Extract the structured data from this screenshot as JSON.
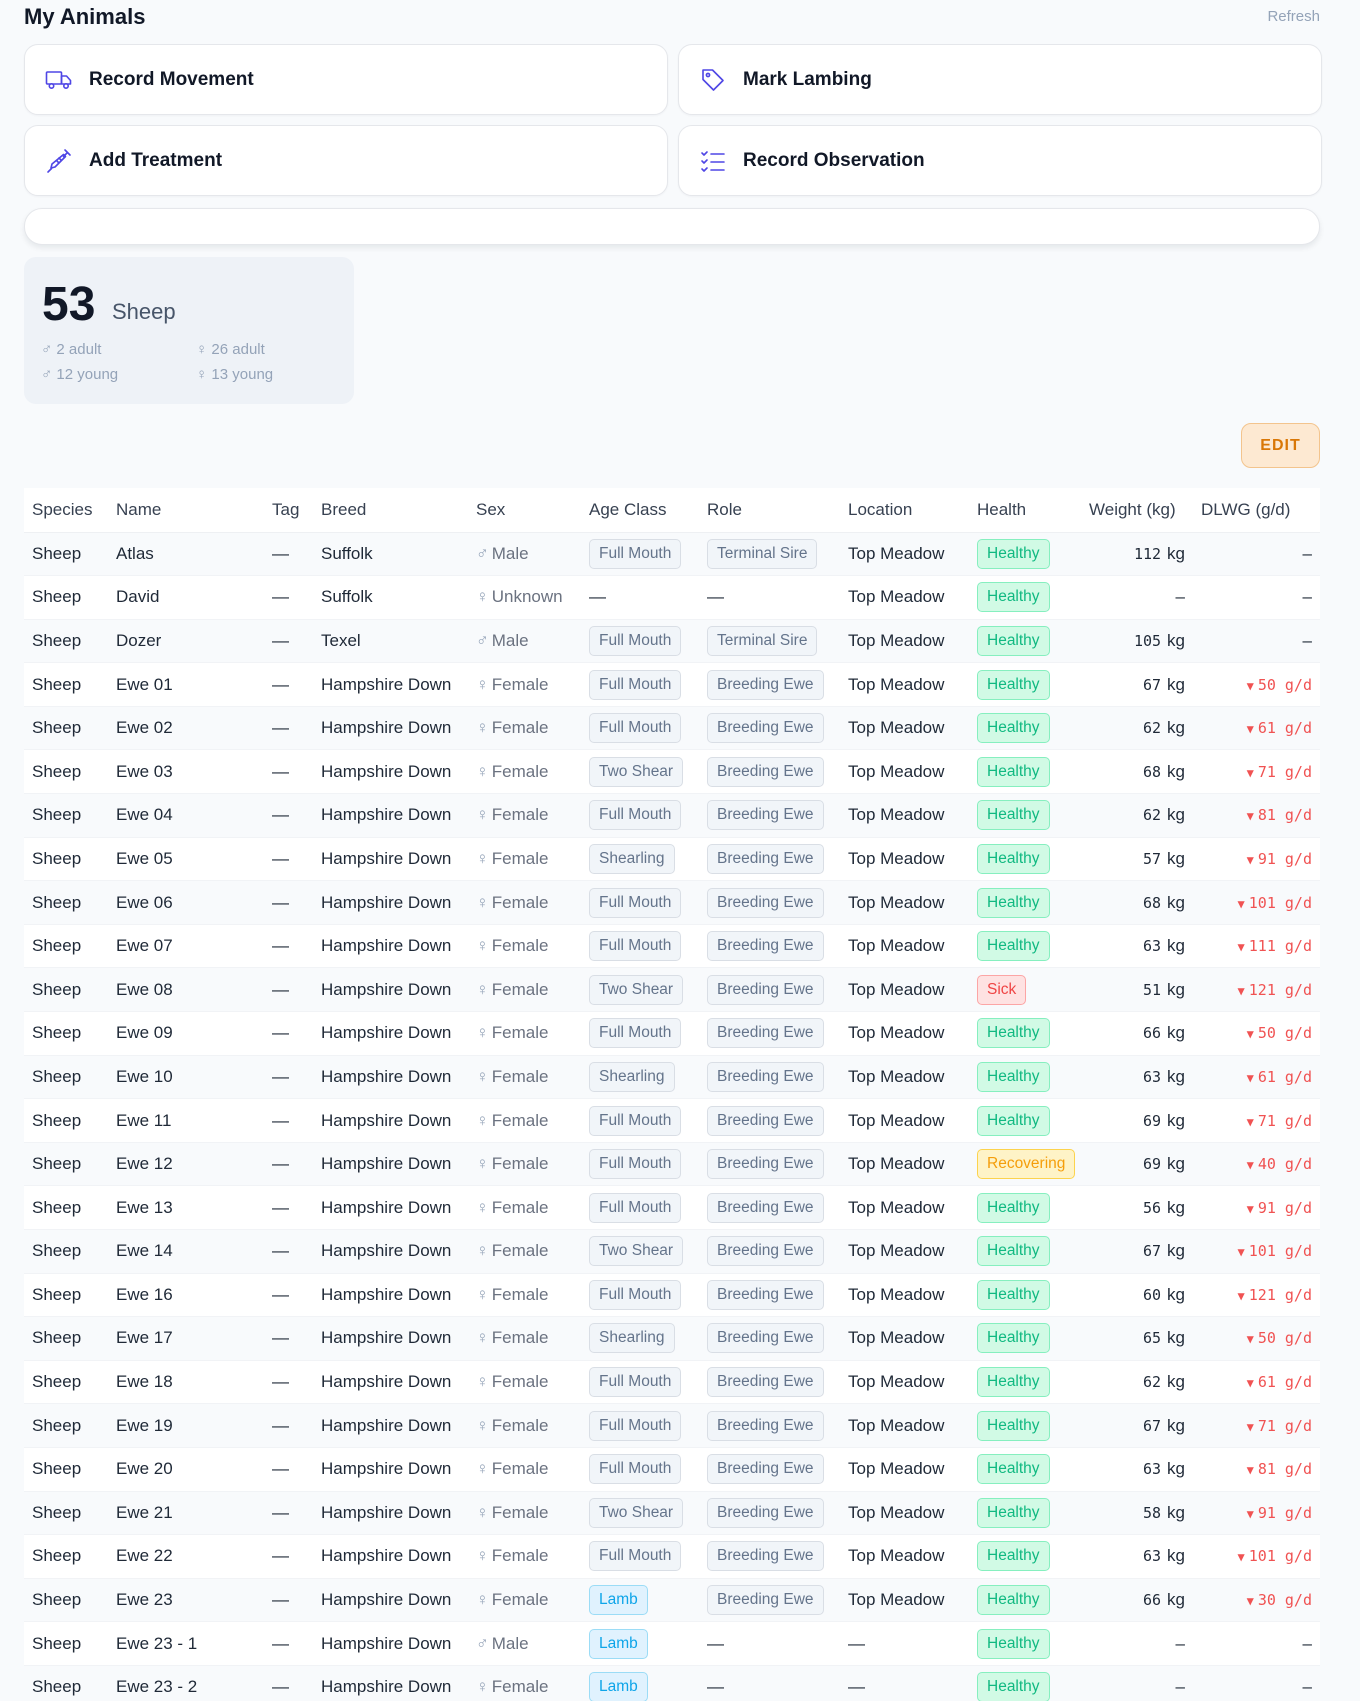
{
  "header": {
    "title": "My Animals",
    "refresh_label": "Refresh"
  },
  "actions": [
    {
      "label": "Record Movement",
      "icon": "truck-icon"
    },
    {
      "label": "Mark Lambing",
      "icon": "tag-icon"
    },
    {
      "label": "Add Treatment",
      "icon": "syringe-icon"
    },
    {
      "label": "Record Observation",
      "icon": "checklist-icon"
    }
  ],
  "summary": {
    "count": "53",
    "species": "Sheep",
    "male_adult": "2 adult",
    "female_adult": "26 adult",
    "male_young": "12 young",
    "female_young": "13 young"
  },
  "edit_label": "EDIT",
  "table": {
    "columns": [
      "Species",
      "Name",
      "Tag",
      "Breed",
      "Sex",
      "Age Class",
      "Role",
      "Location",
      "Health",
      "Weight (kg)",
      "DLWG (g/d)"
    ],
    "rows": [
      {
        "species": "Sheep",
        "name": "Atlas",
        "tag": "—",
        "breed": "Suffolk",
        "sex": "Male",
        "age": "Full Mouth",
        "role": "Terminal Sire",
        "location": "Top Meadow",
        "health": "Healthy",
        "weight": "112",
        "dlwg": ""
      },
      {
        "species": "Sheep",
        "name": "David",
        "tag": "—",
        "breed": "Suffolk",
        "sex": "Unknown",
        "age": "",
        "role": "",
        "location": "Top Meadow",
        "health": "Healthy",
        "weight": "",
        "dlwg": ""
      },
      {
        "species": "Sheep",
        "name": "Dozer",
        "tag": "—",
        "breed": "Texel",
        "sex": "Male",
        "age": "Full Mouth",
        "role": "Terminal Sire",
        "location": "Top Meadow",
        "health": "Healthy",
        "weight": "105",
        "dlwg": ""
      },
      {
        "species": "Sheep",
        "name": "Ewe 01",
        "tag": "—",
        "breed": "Hampshire Down",
        "sex": "Female",
        "age": "Full Mouth",
        "role": "Breeding Ewe",
        "location": "Top Meadow",
        "health": "Healthy",
        "weight": "67",
        "dlwg": "50 g/d"
      },
      {
        "species": "Sheep",
        "name": "Ewe 02",
        "tag": "—",
        "breed": "Hampshire Down",
        "sex": "Female",
        "age": "Full Mouth",
        "role": "Breeding Ewe",
        "location": "Top Meadow",
        "health": "Healthy",
        "weight": "62",
        "dlwg": "61 g/d"
      },
      {
        "species": "Sheep",
        "name": "Ewe 03",
        "tag": "—",
        "breed": "Hampshire Down",
        "sex": "Female",
        "age": "Two Shear",
        "role": "Breeding Ewe",
        "location": "Top Meadow",
        "health": "Healthy",
        "weight": "68",
        "dlwg": "71 g/d"
      },
      {
        "species": "Sheep",
        "name": "Ewe 04",
        "tag": "—",
        "breed": "Hampshire Down",
        "sex": "Female",
        "age": "Full Mouth",
        "role": "Breeding Ewe",
        "location": "Top Meadow",
        "health": "Healthy",
        "weight": "62",
        "dlwg": "81 g/d"
      },
      {
        "species": "Sheep",
        "name": "Ewe 05",
        "tag": "—",
        "breed": "Hampshire Down",
        "sex": "Female",
        "age": "Shearling",
        "role": "Breeding Ewe",
        "location": "Top Meadow",
        "health": "Healthy",
        "weight": "57",
        "dlwg": "91 g/d"
      },
      {
        "species": "Sheep",
        "name": "Ewe 06",
        "tag": "—",
        "breed": "Hampshire Down",
        "sex": "Female",
        "age": "Full Mouth",
        "role": "Breeding Ewe",
        "location": "Top Meadow",
        "health": "Healthy",
        "weight": "68",
        "dlwg": "101 g/d"
      },
      {
        "species": "Sheep",
        "name": "Ewe 07",
        "tag": "—",
        "breed": "Hampshire Down",
        "sex": "Female",
        "age": "Full Mouth",
        "role": "Breeding Ewe",
        "location": "Top Meadow",
        "health": "Healthy",
        "weight": "63",
        "dlwg": "111 g/d"
      },
      {
        "species": "Sheep",
        "name": "Ewe 08",
        "tag": "—",
        "breed": "Hampshire Down",
        "sex": "Female",
        "age": "Two Shear",
        "role": "Breeding Ewe",
        "location": "Top Meadow",
        "health": "Sick",
        "weight": "51",
        "dlwg": "121 g/d"
      },
      {
        "species": "Sheep",
        "name": "Ewe 09",
        "tag": "—",
        "breed": "Hampshire Down",
        "sex": "Female",
        "age": "Full Mouth",
        "role": "Breeding Ewe",
        "location": "Top Meadow",
        "health": "Healthy",
        "weight": "66",
        "dlwg": "50 g/d"
      },
      {
        "species": "Sheep",
        "name": "Ewe 10",
        "tag": "—",
        "breed": "Hampshire Down",
        "sex": "Female",
        "age": "Shearling",
        "role": "Breeding Ewe",
        "location": "Top Meadow",
        "health": "Healthy",
        "weight": "63",
        "dlwg": "61 g/d"
      },
      {
        "species": "Sheep",
        "name": "Ewe 11",
        "tag": "—",
        "breed": "Hampshire Down",
        "sex": "Female",
        "age": "Full Mouth",
        "role": "Breeding Ewe",
        "location": "Top Meadow",
        "health": "Healthy",
        "weight": "69",
        "dlwg": "71 g/d"
      },
      {
        "species": "Sheep",
        "name": "Ewe 12",
        "tag": "—",
        "breed": "Hampshire Down",
        "sex": "Female",
        "age": "Full Mouth",
        "role": "Breeding Ewe",
        "location": "Top Meadow",
        "health": "Recovering",
        "weight": "69",
        "dlwg": "40 g/d"
      },
      {
        "species": "Sheep",
        "name": "Ewe 13",
        "tag": "—",
        "breed": "Hampshire Down",
        "sex": "Female",
        "age": "Full Mouth",
        "role": "Breeding Ewe",
        "location": "Top Meadow",
        "health": "Healthy",
        "weight": "56",
        "dlwg": "91 g/d"
      },
      {
        "species": "Sheep",
        "name": "Ewe 14",
        "tag": "—",
        "breed": "Hampshire Down",
        "sex": "Female",
        "age": "Two Shear",
        "role": "Breeding Ewe",
        "location": "Top Meadow",
        "health": "Healthy",
        "weight": "67",
        "dlwg": "101 g/d"
      },
      {
        "species": "Sheep",
        "name": "Ewe 16",
        "tag": "—",
        "breed": "Hampshire Down",
        "sex": "Female",
        "age": "Full Mouth",
        "role": "Breeding Ewe",
        "location": "Top Meadow",
        "health": "Healthy",
        "weight": "60",
        "dlwg": "121 g/d"
      },
      {
        "species": "Sheep",
        "name": "Ewe 17",
        "tag": "—",
        "breed": "Hampshire Down",
        "sex": "Female",
        "age": "Shearling",
        "role": "Breeding Ewe",
        "location": "Top Meadow",
        "health": "Healthy",
        "weight": "65",
        "dlwg": "50 g/d"
      },
      {
        "species": "Sheep",
        "name": "Ewe 18",
        "tag": "—",
        "breed": "Hampshire Down",
        "sex": "Female",
        "age": "Full Mouth",
        "role": "Breeding Ewe",
        "location": "Top Meadow",
        "health": "Healthy",
        "weight": "62",
        "dlwg": "61 g/d"
      },
      {
        "species": "Sheep",
        "name": "Ewe 19",
        "tag": "—",
        "breed": "Hampshire Down",
        "sex": "Female",
        "age": "Full Mouth",
        "role": "Breeding Ewe",
        "location": "Top Meadow",
        "health": "Healthy",
        "weight": "67",
        "dlwg": "71 g/d"
      },
      {
        "species": "Sheep",
        "name": "Ewe 20",
        "tag": "—",
        "breed": "Hampshire Down",
        "sex": "Female",
        "age": "Full Mouth",
        "role": "Breeding Ewe",
        "location": "Top Meadow",
        "health": "Healthy",
        "weight": "63",
        "dlwg": "81 g/d"
      },
      {
        "species": "Sheep",
        "name": "Ewe 21",
        "tag": "—",
        "breed": "Hampshire Down",
        "sex": "Female",
        "age": "Two Shear",
        "role": "Breeding Ewe",
        "location": "Top Meadow",
        "health": "Healthy",
        "weight": "58",
        "dlwg": "91 g/d"
      },
      {
        "species": "Sheep",
        "name": "Ewe 22",
        "tag": "—",
        "breed": "Hampshire Down",
        "sex": "Female",
        "age": "Full Mouth",
        "role": "Breeding Ewe",
        "location": "Top Meadow",
        "health": "Healthy",
        "weight": "63",
        "dlwg": "101 g/d"
      },
      {
        "species": "Sheep",
        "name": "Ewe 23",
        "tag": "—",
        "breed": "Hampshire Down",
        "sex": "Female",
        "age": "Lamb",
        "role": "Breeding Ewe",
        "location": "Top Meadow",
        "health": "Healthy",
        "weight": "66",
        "dlwg": "30 g/d"
      },
      {
        "species": "Sheep",
        "name": "Ewe 23 - 1",
        "tag": "—",
        "breed": "Hampshire Down",
        "sex": "Male",
        "age": "Lamb",
        "role": "",
        "location": "",
        "health": "Healthy",
        "weight": "",
        "dlwg": ""
      },
      {
        "species": "Sheep",
        "name": "Ewe 23 - 2",
        "tag": "—",
        "breed": "Hampshire Down",
        "sex": "Female",
        "age": "Lamb",
        "role": "",
        "location": "",
        "health": "Healthy",
        "weight": "",
        "dlwg": ""
      }
    ]
  }
}
